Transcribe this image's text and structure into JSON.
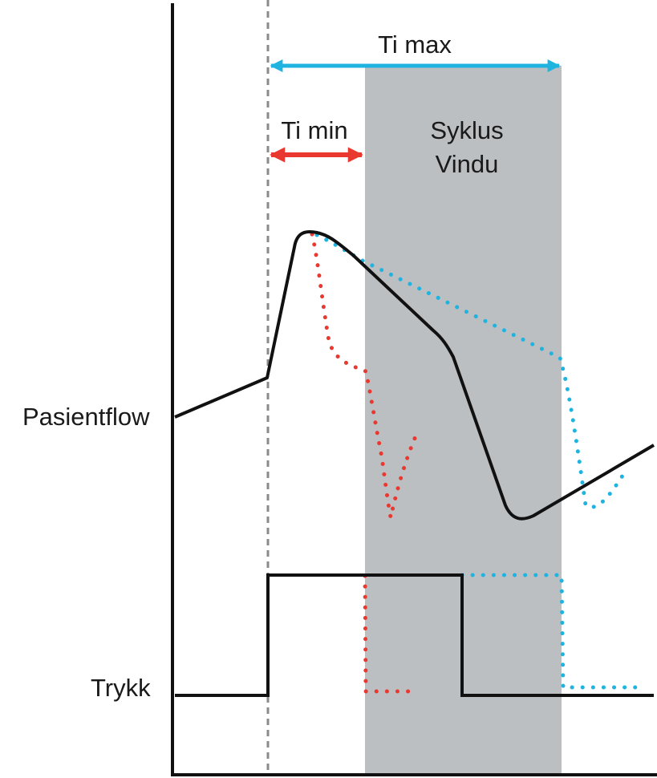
{
  "labels": {
    "ti_max": "Ti max",
    "ti_min": "Ti min",
    "cycle_window_line1": "Syklus",
    "cycle_window_line2": "Vindu",
    "patient_flow": "Pasientflow",
    "pressure": "Trykk"
  },
  "colors": {
    "axis": "#111111",
    "trace": "#111111",
    "dashed_marker": "#8a8a8a",
    "window_fill": "#bcbfc2",
    "ti_max_arrow": "#1fb3e0",
    "ti_min_arrow": "#e8382f",
    "early_cycle_trace": "#e8382f",
    "late_cycle_trace": "#1fb3e0"
  }
}
